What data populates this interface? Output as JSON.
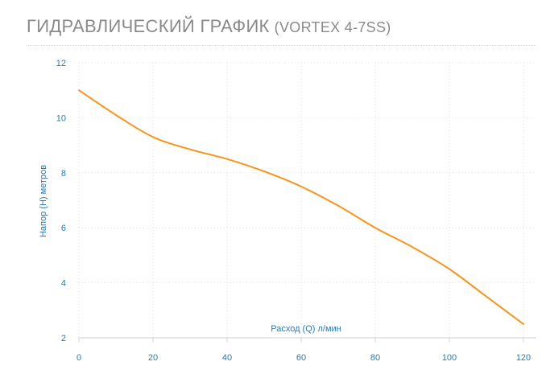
{
  "header": {
    "title": "ГИДРАВЛИЧЕСКИЙ ГРАФИК",
    "subtitle": "(VORTEX 4-7SS)"
  },
  "colors": {
    "line": "#f7941d",
    "tick_text": "#2a7ab0",
    "grid": "#e0e0e0",
    "axis": "#d0d0d0",
    "title": "#8a8a8a"
  },
  "chart_data": {
    "type": "line",
    "title": "ГИДРАВЛИЧЕСКИЙ ГРАФИК (VORTEX 4-7SS)",
    "xlabel": "Расход (Q) л/мин",
    "ylabel": "Напор (H) метров",
    "xlim": [
      0,
      120
    ],
    "ylim": [
      2,
      12
    ],
    "x_ticks": [
      "0",
      "20",
      "40",
      "60",
      "80",
      "100",
      "120"
    ],
    "y_ticks": [
      "2",
      "4",
      "6",
      "8",
      "10",
      "12"
    ],
    "grid": true,
    "legend": "none",
    "series": [
      {
        "x": [
          0,
          10,
          20,
          30,
          40,
          50,
          60,
          70,
          80,
          90,
          100,
          110,
          120
        ],
        "y": [
          11.0,
          10.1,
          9.3,
          8.85,
          8.5,
          8.05,
          7.5,
          6.8,
          6.0,
          5.3,
          4.5,
          3.5,
          2.5
        ]
      }
    ]
  }
}
